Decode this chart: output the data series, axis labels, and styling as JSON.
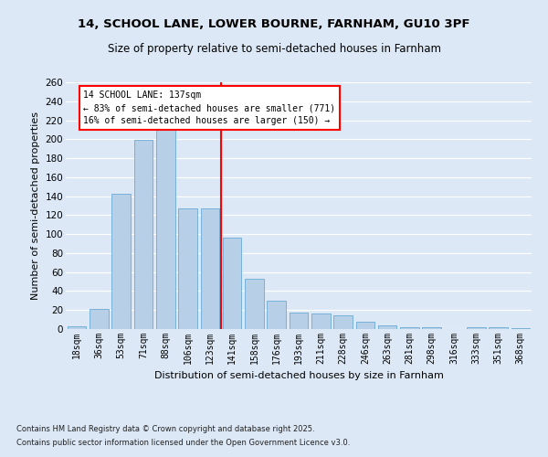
{
  "title1": "14, SCHOOL LANE, LOWER BOURNE, FARNHAM, GU10 3PF",
  "title2": "Size of property relative to semi-detached houses in Farnham",
  "xlabel": "Distribution of semi-detached houses by size in Farnham",
  "ylabel": "Number of semi-detached properties",
  "categories": [
    "18sqm",
    "36sqm",
    "53sqm",
    "71sqm",
    "88sqm",
    "106sqm",
    "123sqm",
    "141sqm",
    "158sqm",
    "176sqm",
    "193sqm",
    "211sqm",
    "228sqm",
    "246sqm",
    "263sqm",
    "281sqm",
    "298sqm",
    "316sqm",
    "333sqm",
    "351sqm",
    "368sqm"
  ],
  "values": [
    3,
    21,
    143,
    199,
    210,
    127,
    127,
    96,
    53,
    30,
    17,
    16,
    14,
    8,
    4,
    2,
    2,
    0,
    2,
    2,
    1
  ],
  "bar_color": "#b8cfe8",
  "bar_edge_color": "#6aaad4",
  "red_line_x": 7.5,
  "annotation_label": "14 SCHOOL LANE: 137sqm",
  "annotation_line1": "← 83% of semi-detached houses are smaller (771)",
  "annotation_line2": "16% of semi-detached houses are larger (150) →",
  "ylim": [
    0,
    260
  ],
  "yticks": [
    0,
    20,
    40,
    60,
    80,
    100,
    120,
    140,
    160,
    180,
    200,
    220,
    240,
    260
  ],
  "footer1": "Contains HM Land Registry data © Crown copyright and database right 2025.",
  "footer2": "Contains public sector information licensed under the Open Government Licence v3.0.",
  "bg_color": "#dce8f5",
  "title1_fontsize": 9.5,
  "title2_fontsize": 8.5
}
